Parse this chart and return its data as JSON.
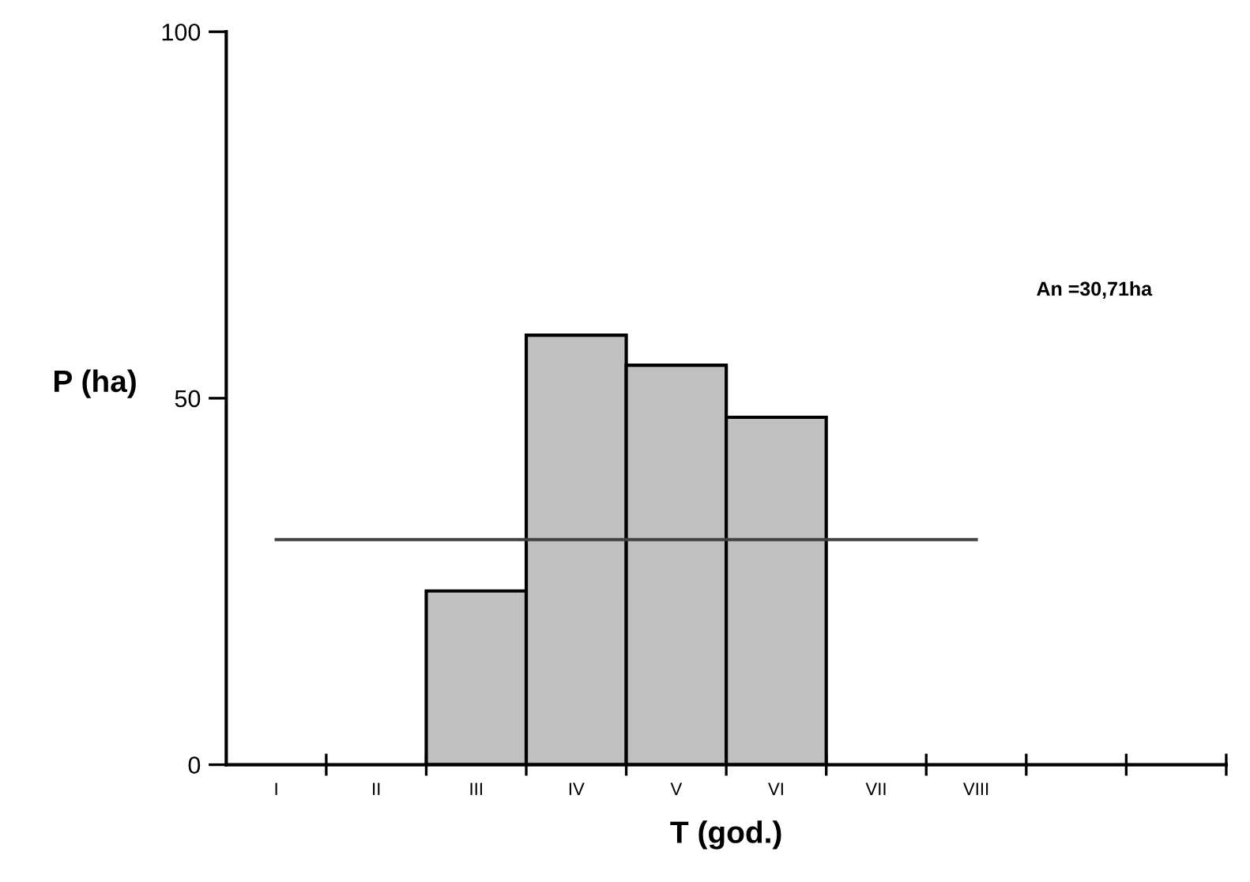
{
  "chart_data": {
    "type": "bar",
    "xlabel": "T (god.)",
    "ylabel": "P (ha)",
    "categories": [
      "I",
      "II",
      "III",
      "IV",
      "V",
      "VI",
      "VII",
      "VIII",
      null,
      null
    ],
    "series": [
      {
        "color": "#c0c0c0",
        "values": [
          null,
          null,
          23.7,
          58.6,
          54.5,
          47.4,
          null,
          null,
          null,
          null
        ]
      },
      {
        "type": "line",
        "color": "#404040",
        "values": [
          30.71,
          30.71,
          30.71,
          30.71,
          30.71,
          30.71,
          30.71,
          30.71,
          null,
          null
        ]
      }
    ],
    "ylim": [
      0,
      100
    ],
    "yticks": [
      0,
      50,
      100
    ],
    "grid": false,
    "legend": false,
    "annotations": [
      "An =30,71ha"
    ]
  }
}
